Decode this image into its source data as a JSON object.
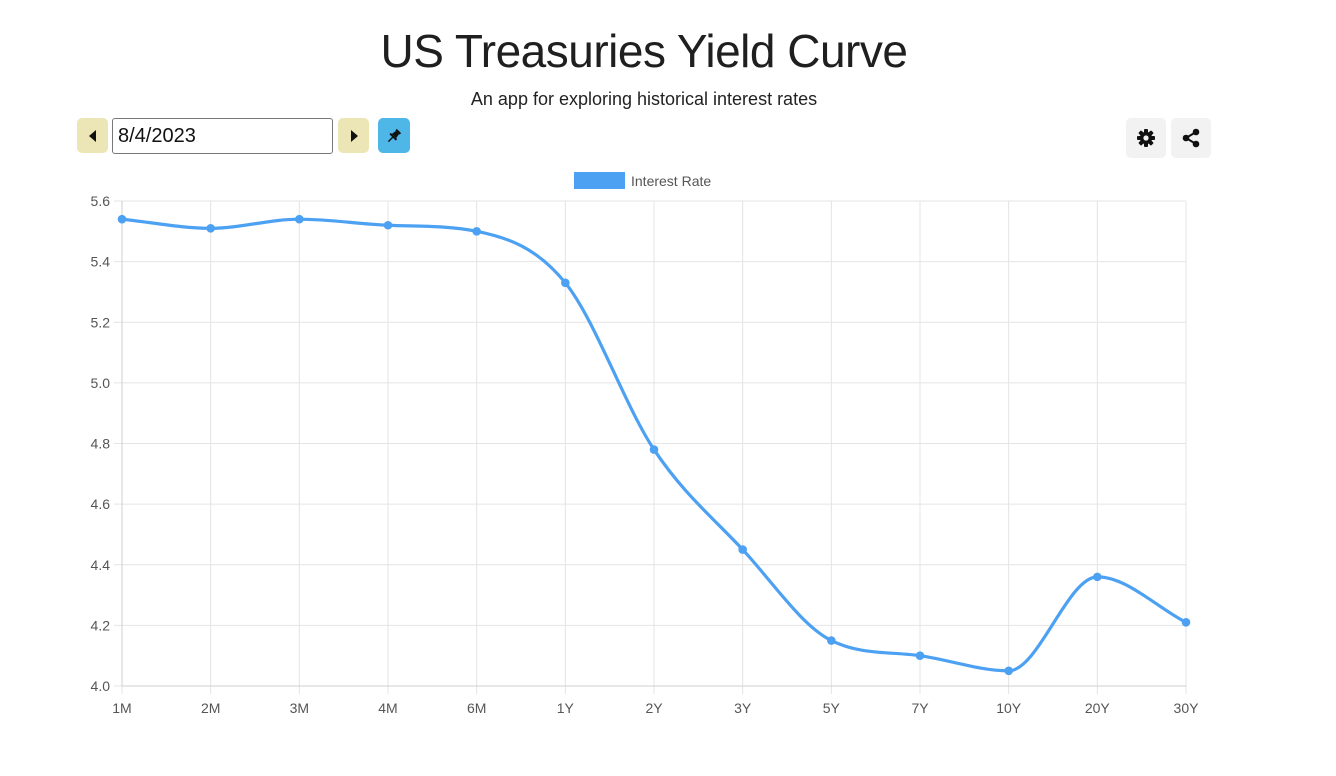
{
  "header": {
    "title": "US Treasuries Yield Curve",
    "subtitle": "An app for exploring historical interest rates"
  },
  "controls": {
    "date_value": "8/4/2023",
    "prev_icon": "caret-left-icon",
    "next_icon": "caret-right-icon",
    "pin_icon": "pushpin-icon",
    "settings_icon": "gear-icon",
    "share_icon": "share-icon"
  },
  "colors": {
    "line": "#4da1f2",
    "nav_button": "#ece6b6",
    "pin_button": "#4fb6e8",
    "grid": "#e4e4e4"
  },
  "chart_data": {
    "type": "line",
    "categories": [
      "1M",
      "2M",
      "3M",
      "4M",
      "6M",
      "1Y",
      "2Y",
      "3Y",
      "5Y",
      "7Y",
      "10Y",
      "20Y",
      "30Y"
    ],
    "series": [
      {
        "name": "Interest Rate",
        "values": [
          5.54,
          5.51,
          5.54,
          5.52,
          5.5,
          5.33,
          4.78,
          4.45,
          4.15,
          4.1,
          4.05,
          4.36,
          4.21
        ]
      }
    ],
    "yticks": [
      "4.0",
      "4.2",
      "4.4",
      "4.6",
      "4.8",
      "5.0",
      "5.2",
      "5.4",
      "5.6"
    ],
    "ylim": [
      4.0,
      5.6
    ],
    "grid": true,
    "legend": "top-center",
    "smooth": true
  }
}
